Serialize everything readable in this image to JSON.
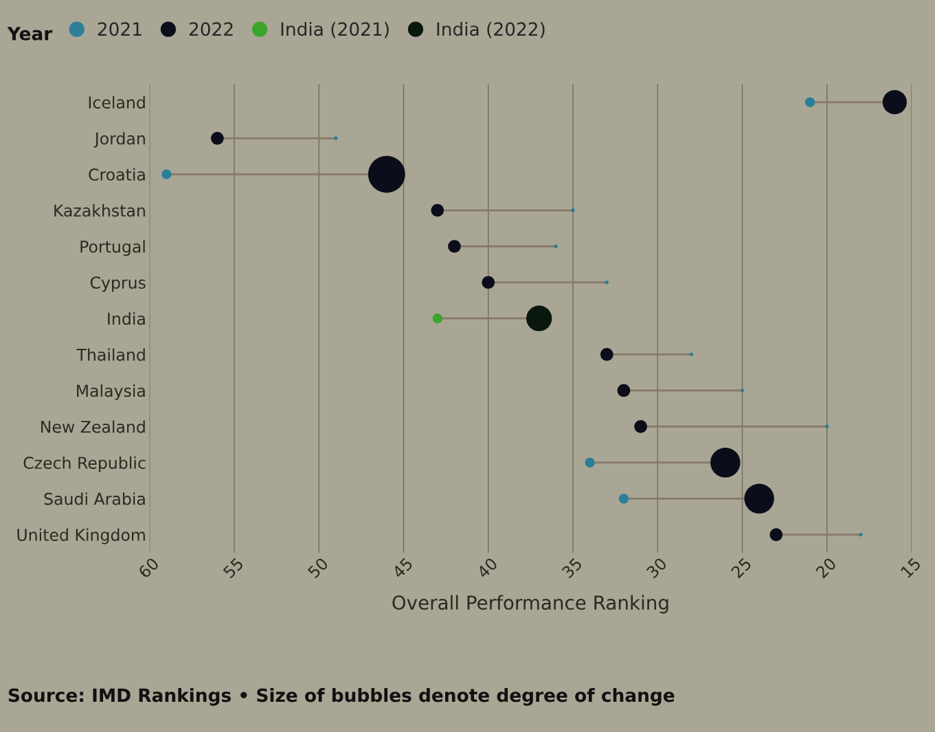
{
  "chart_data": {
    "type": "bubble",
    "orientation": "horizontal",
    "xlabel": "Overall Performance Ranking",
    "legend_title": "Year",
    "legend": "top left",
    "grid": "x",
    "categories": [
      "Iceland",
      "Jordan",
      "Croatia",
      "Kazakhstan",
      "Portugal",
      "Cyprus",
      "India",
      "Thailand",
      "Malaysia",
      "New Zealand",
      "Czech Republic",
      "Saudi Arabia",
      "United Kingdom"
    ],
    "xlim": [
      60,
      15
    ],
    "xticks": [
      60,
      55,
      50,
      45,
      40,
      35,
      30,
      25,
      20,
      15
    ],
    "series": [
      {
        "name": "2021",
        "color": "#2b7f98",
        "values": [
          21,
          49,
          59,
          35,
          36,
          33,
          null,
          28,
          25,
          20,
          34,
          32,
          18
        ],
        "sizes": [
          0.07,
          0.01,
          0.07,
          0.01,
          0.01,
          0.01,
          null,
          0.01,
          0.01,
          0.01,
          0.07,
          0.07,
          0.01
        ]
      },
      {
        "name": "2022",
        "color": "#0b0d1a",
        "values": [
          16,
          56,
          46,
          43,
          42,
          40,
          null,
          33,
          32,
          31,
          26,
          24,
          23
        ],
        "sizes": [
          0.43,
          0.12,
          1,
          0.12,
          0.12,
          0.12,
          null,
          0.12,
          0.12,
          0.12,
          0.65,
          0.65,
          0.12
        ]
      },
      {
        "name": "India (2021)",
        "color": "#3aa52a",
        "values": [
          null,
          null,
          null,
          null,
          null,
          null,
          43,
          null,
          null,
          null,
          null,
          null,
          null
        ],
        "sizes": [
          null,
          null,
          null,
          null,
          null,
          null,
          0.07,
          null,
          null,
          null,
          null,
          null,
          null
        ]
      },
      {
        "name": "India (2022)",
        "color": "#0a170c",
        "values": [
          null,
          null,
          null,
          null,
          null,
          null,
          37,
          null,
          null,
          null,
          null,
          null,
          null
        ],
        "sizes": [
          null,
          null,
          null,
          null,
          null,
          null,
          0.48,
          null,
          null,
          null,
          null,
          null,
          null
        ]
      }
    ],
    "annotations": [
      "Source: IMD Rankings • Size of bubbles denote degree of change"
    ]
  }
}
